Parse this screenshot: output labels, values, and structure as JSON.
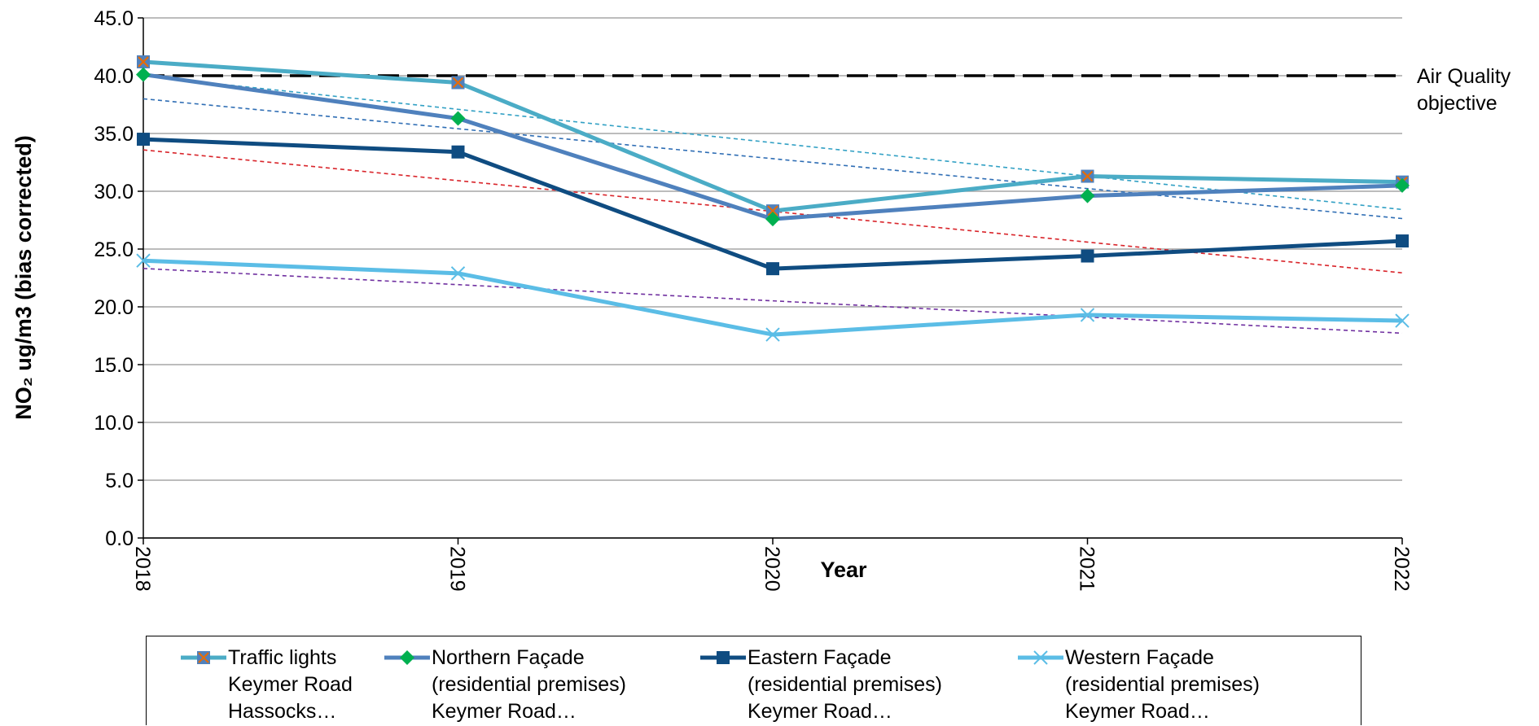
{
  "chart_data": {
    "type": "line",
    "categories": [
      "2018",
      "2019",
      "2020",
      "2021",
      "2022"
    ],
    "x_label": "Year",
    "y_label": "NO₂ ug/m3 (bias corrected)",
    "ylim": [
      0,
      45
    ],
    "yticks": [
      {
        "value": 0,
        "label": "0.0"
      },
      {
        "value": 5,
        "label": "5.0"
      },
      {
        "value": 10,
        "label": "10.0"
      },
      {
        "value": 15,
        "label": "15.0"
      },
      {
        "value": 20,
        "label": "20.0"
      },
      {
        "value": 25,
        "label": "25.0"
      },
      {
        "value": 30,
        "label": "30.0"
      },
      {
        "value": 35,
        "label": "35.0"
      },
      {
        "value": 40,
        "label": "40.0"
      },
      {
        "value": 45,
        "label": "45.0"
      }
    ],
    "grid": true,
    "objective": {
      "value": 40,
      "label": [
        "Air Quality",
        "objective"
      ],
      "color": "#000000"
    },
    "trendlines": true,
    "series": [
      {
        "name": "Traffic lights Keymer Road Hassocks…",
        "color": "#4bacc6",
        "marker": "square-x",
        "marker_color": "#4f81bd",
        "trend_color": "#31a0c4",
        "values": [
          41.2,
          39.4,
          28.3,
          31.3,
          30.8
        ]
      },
      {
        "name": "Northern Façade (residential premises) Keymer Road…",
        "color": "#4f81bd",
        "marker": "diamond",
        "marker_color": "#00b050",
        "trend_color": "#2e6db4",
        "values": [
          40.1,
          36.3,
          27.6,
          29.6,
          30.5
        ]
      },
      {
        "name": "Eastern Façade (residential premises) Keymer Road…",
        "color": "#0f4c81",
        "marker": "square",
        "marker_color": "#0f4c81",
        "trend_color": "#d9262c",
        "values": [
          34.5,
          33.4,
          23.3,
          24.4,
          25.7
        ]
      },
      {
        "name": "Western Façade (residential premises) Keymer Road…",
        "color": "#5bbde6",
        "marker": "x",
        "marker_color": "#5bbde6",
        "trend_color": "#7030a0",
        "values": [
          24.0,
          22.9,
          17.6,
          19.3,
          18.8
        ]
      }
    ]
  }
}
